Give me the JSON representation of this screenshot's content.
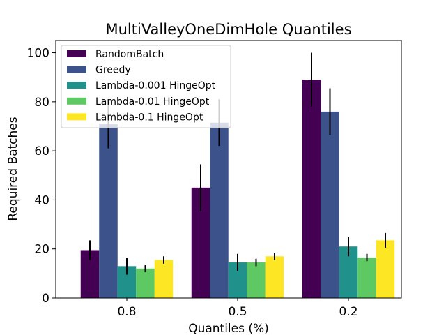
{
  "chart_data": {
    "type": "bar",
    "title": "MultiValleyOneDimHole Quantiles",
    "xlabel": "Quantiles (%)",
    "ylabel": "Required Batches",
    "ylim": [
      0,
      105
    ],
    "yticks": [
      0,
      20,
      40,
      60,
      80,
      100
    ],
    "categories": [
      "0.8",
      "0.5",
      "0.2"
    ],
    "legend_position": "top-left",
    "series": [
      {
        "name": "RandomBatch",
        "color": "#440154",
        "values": [
          19.5,
          45,
          89
        ],
        "errors": [
          4,
          9.5,
          11
        ]
      },
      {
        "name": "Greedy",
        "color": "#3b528b",
        "values": [
          71,
          71.5,
          76
        ],
        "errors": [
          10,
          9.5,
          9.5
        ]
      },
      {
        "name": "Lambda-0.001 HingeOpt",
        "color": "#21918c",
        "values": [
          13,
          14.5,
          21
        ],
        "errors": [
          3.5,
          3.5,
          4
        ]
      },
      {
        "name": "Lambda-0.01 HingeOpt",
        "color": "#5ec962",
        "values": [
          12,
          14.5,
          16.5
        ],
        "errors": [
          1.5,
          1.5,
          1.5
        ]
      },
      {
        "name": "Lambda-0.1 HingeOpt",
        "color": "#fde725",
        "values": [
          15.5,
          17,
          23.5
        ],
        "errors": [
          1.5,
          1.5,
          3
        ]
      }
    ]
  }
}
